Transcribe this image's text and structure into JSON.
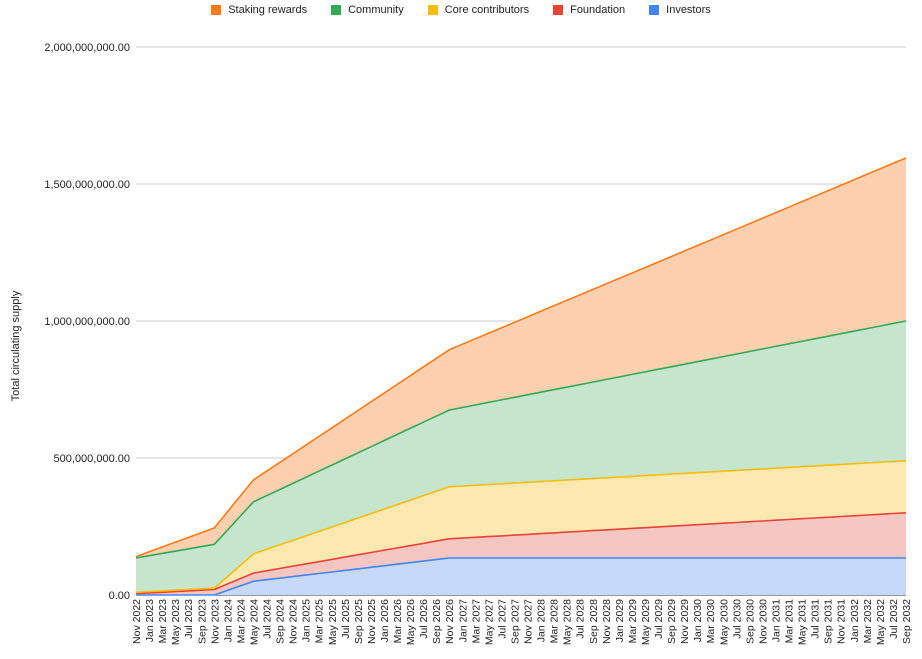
{
  "chart_data": {
    "type": "area",
    "stacked": true,
    "xlabel": "",
    "ylabel": "Total circulating supply",
    "ylim": [
      0,
      2000000000
    ],
    "yticks": [
      0,
      500000000,
      1000000000,
      1500000000,
      2000000000
    ],
    "ytick_labels": [
      "0.00",
      "500,000,000.00",
      "1,000,000,000.00",
      "1,500,000,000.00",
      "2,000,000,000.00"
    ],
    "grid": true,
    "legend_position": "top",
    "x": [
      "Nov 2022",
      "Jan 2023",
      "Mar 2023",
      "May 2023",
      "Jul 2023",
      "Sep 2023",
      "Nov 2023",
      "Jan 2024",
      "Mar 2024",
      "May 2024",
      "Jul 2024",
      "Sep 2024",
      "Nov 2024",
      "Jan 2025",
      "Mar 2025",
      "May 2025",
      "Jul 2025",
      "Sep 2025",
      "Nov 2025",
      "Jan 2026",
      "Mar 2026",
      "May 2026",
      "Jul 2026",
      "Sep 2026",
      "Nov 2026",
      "Jan 2027",
      "Mar 2027",
      "May 2027",
      "Jul 2027",
      "Sep 2027",
      "Nov 2027",
      "Jan 2028",
      "Mar 2028",
      "May 2028",
      "Jul 2028",
      "Sep 2028",
      "Nov 2028",
      "Jan 2029",
      "Mar 2029",
      "May 2029",
      "Jul 2029",
      "Sep 2029",
      "Nov 2029",
      "Jan 2030",
      "Mar 2030",
      "May 2030",
      "Jul 2030",
      "Sep 2030",
      "Nov 2030",
      "Jan 2031",
      "Mar 2031",
      "May 2031",
      "Jul 2031",
      "Sep 2031",
      "Nov 2031",
      "Jan 2032",
      "Mar 2032",
      "May 2032",
      "Jul 2032",
      "Sep 2032"
    ],
    "x_keypoints": [
      "Nov 2022",
      "Nov 2023",
      "May 2024",
      "Nov 2026",
      "Sep 2032"
    ],
    "series": [
      {
        "name": "Investors",
        "color": "#4285F4",
        "fill": "#c6d9fb",
        "cumulative_keypoints": [
          0,
          0,
          50000000,
          135000000,
          135000000
        ]
      },
      {
        "name": "Foundation",
        "color": "#EA4335",
        "fill": "#f6c7c2",
        "cumulative_keypoints": [
          5000000,
          20000000,
          80000000,
          205000000,
          300000000
        ]
      },
      {
        "name": "Core contributors",
        "color": "#FBBC04",
        "fill": "#fde8b0",
        "cumulative_keypoints": [
          10000000,
          25000000,
          150000000,
          395000000,
          490000000
        ]
      },
      {
        "name": "Community",
        "color": "#34A853",
        "fill": "#c6e5cd",
        "cumulative_keypoints": [
          135000000,
          185000000,
          340000000,
          675000000,
          1000000000
        ]
      },
      {
        "name": "Staking rewards",
        "color": "#FA7B17",
        "fill": "#fdd0b0",
        "cumulative_keypoints": [
          140000000,
          245000000,
          420000000,
          895000000,
          1595000000
        ]
      }
    ],
    "legend_order": [
      "Staking rewards",
      "Community",
      "Core contributors",
      "Foundation",
      "Investors"
    ]
  }
}
